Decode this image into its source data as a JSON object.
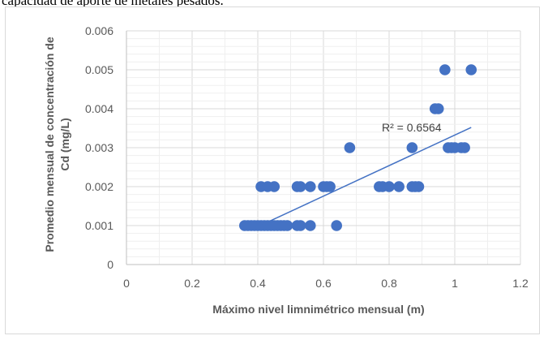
{
  "header_text": "capacidad de aporte de metales pesados.",
  "chart_data": {
    "type": "scatter",
    "title": "",
    "xlabel": "Máximo nivel limnimétrico mensual (m)",
    "ylabel_lines": [
      "Promedio mensual de concentración de",
      "Cd (mg/L)"
    ],
    "xlim": [
      0,
      1.2
    ],
    "ylim": [
      0,
      0.006
    ],
    "xticks": [
      0,
      0.2,
      0.4,
      0.6,
      0.8,
      1,
      1.2
    ],
    "xtick_labels": [
      "0",
      "0.2",
      "0.4",
      "0.6",
      "0.8",
      "1",
      "1.2"
    ],
    "yticks": [
      0,
      0.001,
      0.002,
      0.003,
      0.004,
      0.005,
      0.006
    ],
    "ytick_labels": [
      "0",
      "0.001",
      "0.002",
      "0.003",
      "0.004",
      "0.005",
      "0.006"
    ],
    "grid": true,
    "marker_color": "#4472c4",
    "trendline_color": "#4472c4",
    "points": [
      {
        "x": 0.36,
        "y": 0.001
      },
      {
        "x": 0.37,
        "y": 0.001
      },
      {
        "x": 0.38,
        "y": 0.001
      },
      {
        "x": 0.39,
        "y": 0.001
      },
      {
        "x": 0.4,
        "y": 0.001
      },
      {
        "x": 0.41,
        "y": 0.001
      },
      {
        "x": 0.42,
        "y": 0.001
      },
      {
        "x": 0.43,
        "y": 0.001
      },
      {
        "x": 0.44,
        "y": 0.001
      },
      {
        "x": 0.45,
        "y": 0.001
      },
      {
        "x": 0.46,
        "y": 0.001
      },
      {
        "x": 0.47,
        "y": 0.001
      },
      {
        "x": 0.48,
        "y": 0.001
      },
      {
        "x": 0.49,
        "y": 0.001
      },
      {
        "x": 0.52,
        "y": 0.001
      },
      {
        "x": 0.53,
        "y": 0.001
      },
      {
        "x": 0.56,
        "y": 0.001
      },
      {
        "x": 0.64,
        "y": 0.001
      },
      {
        "x": 0.41,
        "y": 0.002
      },
      {
        "x": 0.43,
        "y": 0.002
      },
      {
        "x": 0.45,
        "y": 0.002
      },
      {
        "x": 0.52,
        "y": 0.002
      },
      {
        "x": 0.53,
        "y": 0.002
      },
      {
        "x": 0.56,
        "y": 0.002
      },
      {
        "x": 0.6,
        "y": 0.002
      },
      {
        "x": 0.61,
        "y": 0.002
      },
      {
        "x": 0.62,
        "y": 0.002
      },
      {
        "x": 0.77,
        "y": 0.002
      },
      {
        "x": 0.78,
        "y": 0.002
      },
      {
        "x": 0.8,
        "y": 0.002
      },
      {
        "x": 0.83,
        "y": 0.002
      },
      {
        "x": 0.87,
        "y": 0.002
      },
      {
        "x": 0.88,
        "y": 0.002
      },
      {
        "x": 0.89,
        "y": 0.002
      },
      {
        "x": 0.68,
        "y": 0.003
      },
      {
        "x": 0.87,
        "y": 0.003
      },
      {
        "x": 0.98,
        "y": 0.003
      },
      {
        "x": 0.99,
        "y": 0.003
      },
      {
        "x": 1.0,
        "y": 0.003
      },
      {
        "x": 1.02,
        "y": 0.003
      },
      {
        "x": 1.03,
        "y": 0.003
      },
      {
        "x": 0.94,
        "y": 0.004
      },
      {
        "x": 0.95,
        "y": 0.004
      },
      {
        "x": 0.97,
        "y": 0.005
      },
      {
        "x": 1.05,
        "y": 0.005
      }
    ],
    "trendline": {
      "x": [
        0.42,
        1.05
      ],
      "y": [
        0.00105,
        0.00352
      ]
    },
    "annotation": "R² = 0.6564"
  }
}
